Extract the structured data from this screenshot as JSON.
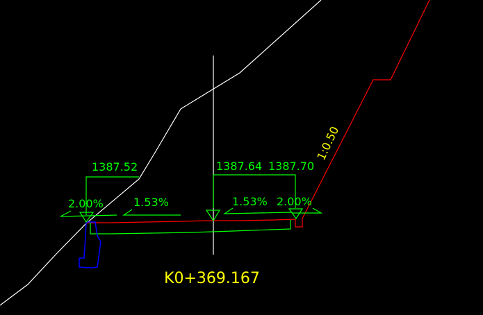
{
  "drawing": {
    "station_label": "K0+369.167",
    "side_slope_label": "1:0.50",
    "elevations": {
      "left_edge": "1387.52",
      "centerline": "1387.64",
      "right_edge": "1387.70"
    },
    "crossfall": {
      "left_shoulder": "2.00%",
      "left_lane": "1.53%",
      "right_lane": "1.53%",
      "right_shoulder": "2.00%"
    },
    "colors": {
      "background": "#000000",
      "ground_line": "#ffffff",
      "design_surface": "#ff0000",
      "annotations": "#00ff00",
      "retaining_wall": "#0000ff",
      "labels": "#ffff00"
    }
  }
}
